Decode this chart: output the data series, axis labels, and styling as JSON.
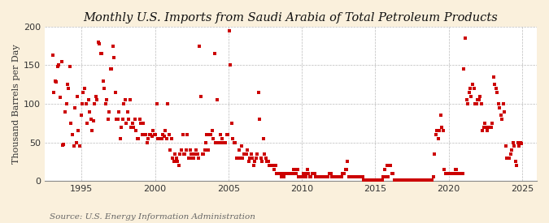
{
  "title": "Monthly U.S. Imports from Saudi Arabia of Total Petroleum Products",
  "ylabel": "Thousand Barrels per Day",
  "source": "Source: U.S. Energy Information Administration",
  "fig_bg_color": "#FAF0DC",
  "plot_bg_color": "#FFFFFF",
  "dot_color": "#CC0000",
  "dot_size": 5,
  "xlim": [
    1992.5,
    2026.0
  ],
  "ylim": [
    0,
    200
  ],
  "yticks": [
    0,
    50,
    100,
    150,
    200
  ],
  "xticks": [
    1995,
    2000,
    2005,
    2010,
    2015,
    2020,
    2025
  ],
  "grid_color": "#AAAAAA",
  "title_fontsize": 10.5,
  "label_fontsize": 8,
  "tick_fontsize": 8,
  "source_fontsize": 7.5,
  "data_x": [
    1993.04,
    1993.12,
    1993.21,
    1993.29,
    1993.38,
    1993.46,
    1993.54,
    1993.63,
    1993.71,
    1993.79,
    1993.88,
    1993.96,
    1994.04,
    1994.12,
    1994.21,
    1994.29,
    1994.38,
    1994.46,
    1994.54,
    1994.63,
    1994.71,
    1994.79,
    1994.88,
    1994.96,
    1995.04,
    1995.12,
    1995.21,
    1995.29,
    1995.38,
    1995.46,
    1995.54,
    1995.63,
    1995.71,
    1995.79,
    1995.88,
    1995.96,
    1996.04,
    1996.12,
    1996.21,
    1996.29,
    1996.38,
    1996.46,
    1996.54,
    1996.63,
    1996.71,
    1996.79,
    1996.88,
    1996.96,
    1997.04,
    1997.12,
    1997.21,
    1997.29,
    1997.38,
    1997.46,
    1997.54,
    1997.63,
    1997.71,
    1997.79,
    1997.88,
    1997.96,
    1998.04,
    1998.12,
    1998.21,
    1998.29,
    1998.38,
    1998.46,
    1998.54,
    1998.63,
    1998.71,
    1998.79,
    1998.88,
    1998.96,
    1999.04,
    1999.12,
    1999.21,
    1999.29,
    1999.38,
    1999.46,
    1999.54,
    1999.63,
    1999.71,
    1999.79,
    1999.88,
    1999.96,
    2000.04,
    2000.12,
    2000.21,
    2000.29,
    2000.38,
    2000.46,
    2000.54,
    2000.63,
    2000.71,
    2000.79,
    2000.88,
    2000.96,
    2001.04,
    2001.12,
    2001.21,
    2001.29,
    2001.38,
    2001.46,
    2001.54,
    2001.63,
    2001.71,
    2001.79,
    2001.88,
    2001.96,
    2002.04,
    2002.12,
    2002.21,
    2002.29,
    2002.38,
    2002.46,
    2002.54,
    2002.63,
    2002.71,
    2002.79,
    2002.88,
    2002.96,
    2003.04,
    2003.12,
    2003.21,
    2003.29,
    2003.38,
    2003.46,
    2003.54,
    2003.63,
    2003.71,
    2003.79,
    2003.88,
    2003.96,
    2004.04,
    2004.12,
    2004.21,
    2004.29,
    2004.38,
    2004.46,
    2004.54,
    2004.63,
    2004.71,
    2004.79,
    2004.88,
    2004.96,
    2005.04,
    2005.12,
    2005.21,
    2005.29,
    2005.38,
    2005.46,
    2005.54,
    2005.63,
    2005.71,
    2005.79,
    2005.88,
    2005.96,
    2006.04,
    2006.12,
    2006.21,
    2006.29,
    2006.38,
    2006.46,
    2006.54,
    2006.63,
    2006.71,
    2006.79,
    2006.88,
    2006.96,
    2007.04,
    2007.12,
    2007.21,
    2007.29,
    2007.38,
    2007.46,
    2007.54,
    2007.63,
    2007.71,
    2007.79,
    2007.88,
    2007.96,
    2008.04,
    2008.12,
    2008.21,
    2008.29,
    2008.38,
    2008.46,
    2008.54,
    2008.63,
    2008.71,
    2008.79,
    2008.88,
    2008.96,
    2009.04,
    2009.12,
    2009.21,
    2009.29,
    2009.38,
    2009.46,
    2009.54,
    2009.63,
    2009.71,
    2009.79,
    2009.88,
    2009.96,
    2010.04,
    2010.12,
    2010.21,
    2010.29,
    2010.38,
    2010.46,
    2010.54,
    2010.63,
    2010.71,
    2010.79,
    2010.88,
    2010.96,
    2011.04,
    2011.12,
    2011.21,
    2011.29,
    2011.38,
    2011.46,
    2011.54,
    2011.63,
    2011.71,
    2011.79,
    2011.88,
    2011.96,
    2012.04,
    2012.12,
    2012.21,
    2012.29,
    2012.38,
    2012.46,
    2012.54,
    2012.63,
    2012.71,
    2012.79,
    2012.88,
    2012.96,
    2013.04,
    2013.12,
    2013.21,
    2013.29,
    2013.38,
    2013.46,
    2013.54,
    2013.63,
    2013.71,
    2013.79,
    2013.88,
    2013.96,
    2014.04,
    2014.12,
    2014.21,
    2014.29,
    2014.38,
    2014.46,
    2014.54,
    2014.63,
    2014.71,
    2014.79,
    2014.88,
    2014.96,
    2015.04,
    2015.12,
    2015.21,
    2015.29,
    2015.38,
    2015.46,
    2015.54,
    2015.63,
    2015.71,
    2015.79,
    2015.88,
    2015.96,
    2016.04,
    2016.12,
    2016.21,
    2016.29,
    2016.38,
    2016.46,
    2016.54,
    2016.63,
    2016.71,
    2016.79,
    2016.88,
    2016.96,
    2017.04,
    2017.12,
    2017.21,
    2017.29,
    2017.38,
    2017.46,
    2017.54,
    2017.63,
    2017.71,
    2017.79,
    2017.88,
    2017.96,
    2018.04,
    2018.12,
    2018.21,
    2018.29,
    2018.38,
    2018.46,
    2018.54,
    2018.63,
    2018.71,
    2018.79,
    2018.88,
    2018.96,
    2019.04,
    2019.12,
    2019.21,
    2019.29,
    2019.38,
    2019.46,
    2019.54,
    2019.63,
    2019.71,
    2019.79,
    2019.88,
    2019.96,
    2020.04,
    2020.12,
    2020.21,
    2020.29,
    2020.38,
    2020.46,
    2020.54,
    2020.63,
    2020.71,
    2020.79,
    2020.88,
    2020.96,
    2021.04,
    2021.12,
    2021.21,
    2021.29,
    2021.38,
    2021.46,
    2021.54,
    2021.63,
    2021.71,
    2021.79,
    2021.88,
    2021.96,
    2022.04,
    2022.12,
    2022.21,
    2022.29,
    2022.38,
    2022.46,
    2022.54,
    2022.63,
    2022.71,
    2022.79,
    2022.88,
    2022.96,
    2023.04,
    2023.12,
    2023.21,
    2023.29,
    2023.38,
    2023.46,
    2023.54,
    2023.63,
    2023.71,
    2023.79,
    2023.88,
    2023.96,
    2024.04,
    2024.12,
    2024.21,
    2024.29,
    2024.38,
    2024.46,
    2024.54,
    2024.63,
    2024.71,
    2024.79,
    2024.88,
    2024.96
  ],
  "data_y": [
    163,
    115,
    130,
    128,
    148,
    150,
    108,
    155,
    46,
    47,
    90,
    100,
    125,
    120,
    148,
    75,
    60,
    45,
    95,
    50,
    110,
    65,
    45,
    85,
    100,
    115,
    120,
    100,
    75,
    105,
    90,
    80,
    65,
    78,
    100,
    110,
    105,
    180,
    178,
    165,
    165,
    130,
    120,
    100,
    105,
    80,
    90,
    145,
    145,
    175,
    160,
    115,
    80,
    80,
    90,
    55,
    70,
    80,
    100,
    105,
    75,
    90,
    80,
    105,
    70,
    75,
    70,
    80,
    65,
    55,
    55,
    80,
    75,
    60,
    75,
    60,
    60,
    50,
    55,
    60,
    60,
    58,
    65,
    60,
    60,
    100,
    55,
    55,
    55,
    55,
    60,
    58,
    65,
    55,
    100,
    60,
    40,
    55,
    30,
    25,
    35,
    30,
    25,
    20,
    35,
    40,
    60,
    35,
    35,
    40,
    60,
    30,
    40,
    35,
    30,
    30,
    35,
    40,
    35,
    30,
    175,
    110,
    35,
    35,
    40,
    50,
    60,
    40,
    60,
    60,
    65,
    55,
    165,
    50,
    105,
    50,
    50,
    60,
    55,
    50,
    50,
    50,
    60,
    60,
    195,
    150,
    75,
    55,
    50,
    50,
    30,
    30,
    40,
    30,
    45,
    30,
    35,
    35,
    35,
    40,
    25,
    30,
    35,
    30,
    20,
    25,
    30,
    35,
    115,
    80,
    30,
    25,
    55,
    35,
    30,
    25,
    25,
    20,
    20,
    20,
    20,
    15,
    20,
    10,
    10,
    10,
    10,
    5,
    10,
    5,
    10,
    10,
    10,
    10,
    10,
    10,
    10,
    15,
    15,
    10,
    15,
    5,
    5,
    5,
    5,
    10,
    10,
    5,
    15,
    10,
    5,
    5,
    10,
    10,
    10,
    5,
    5,
    5,
    5,
    5,
    5,
    5,
    5,
    5,
    5,
    5,
    10,
    10,
    5,
    5,
    5,
    5,
    5,
    5,
    5,
    5,
    5,
    10,
    10,
    15,
    15,
    25,
    5,
    5,
    5,
    5,
    5,
    5,
    5,
    5,
    5,
    5,
    5,
    5,
    1,
    1,
    1,
    1,
    1,
    1,
    1,
    1,
    1,
    1,
    1,
    1,
    1,
    1,
    1,
    1,
    5,
    15,
    5,
    20,
    5,
    20,
    20,
    10,
    10,
    1,
    1,
    1,
    1,
    1,
    1,
    1,
    1,
    1,
    1,
    1,
    1,
    1,
    1,
    1,
    1,
    1,
    1,
    1,
    1,
    1,
    1,
    1,
    1,
    1,
    1,
    1,
    1,
    1,
    1,
    1,
    1,
    5,
    35,
    60,
    65,
    55,
    65,
    85,
    70,
    65,
    15,
    10,
    10,
    10,
    10,
    10,
    10,
    10,
    10,
    15,
    15,
    10,
    10,
    10,
    10,
    10,
    145,
    185,
    105,
    100,
    115,
    120,
    110,
    125,
    120,
    100,
    100,
    105,
    105,
    110,
    100,
    65,
    70,
    75,
    70,
    65,
    70,
    70,
    70,
    75,
    135,
    125,
    120,
    115,
    100,
    95,
    85,
    80,
    100,
    90,
    45,
    30,
    30,
    30,
    35,
    40,
    50,
    45,
    25,
    20,
    50,
    45,
    50,
    48
  ]
}
